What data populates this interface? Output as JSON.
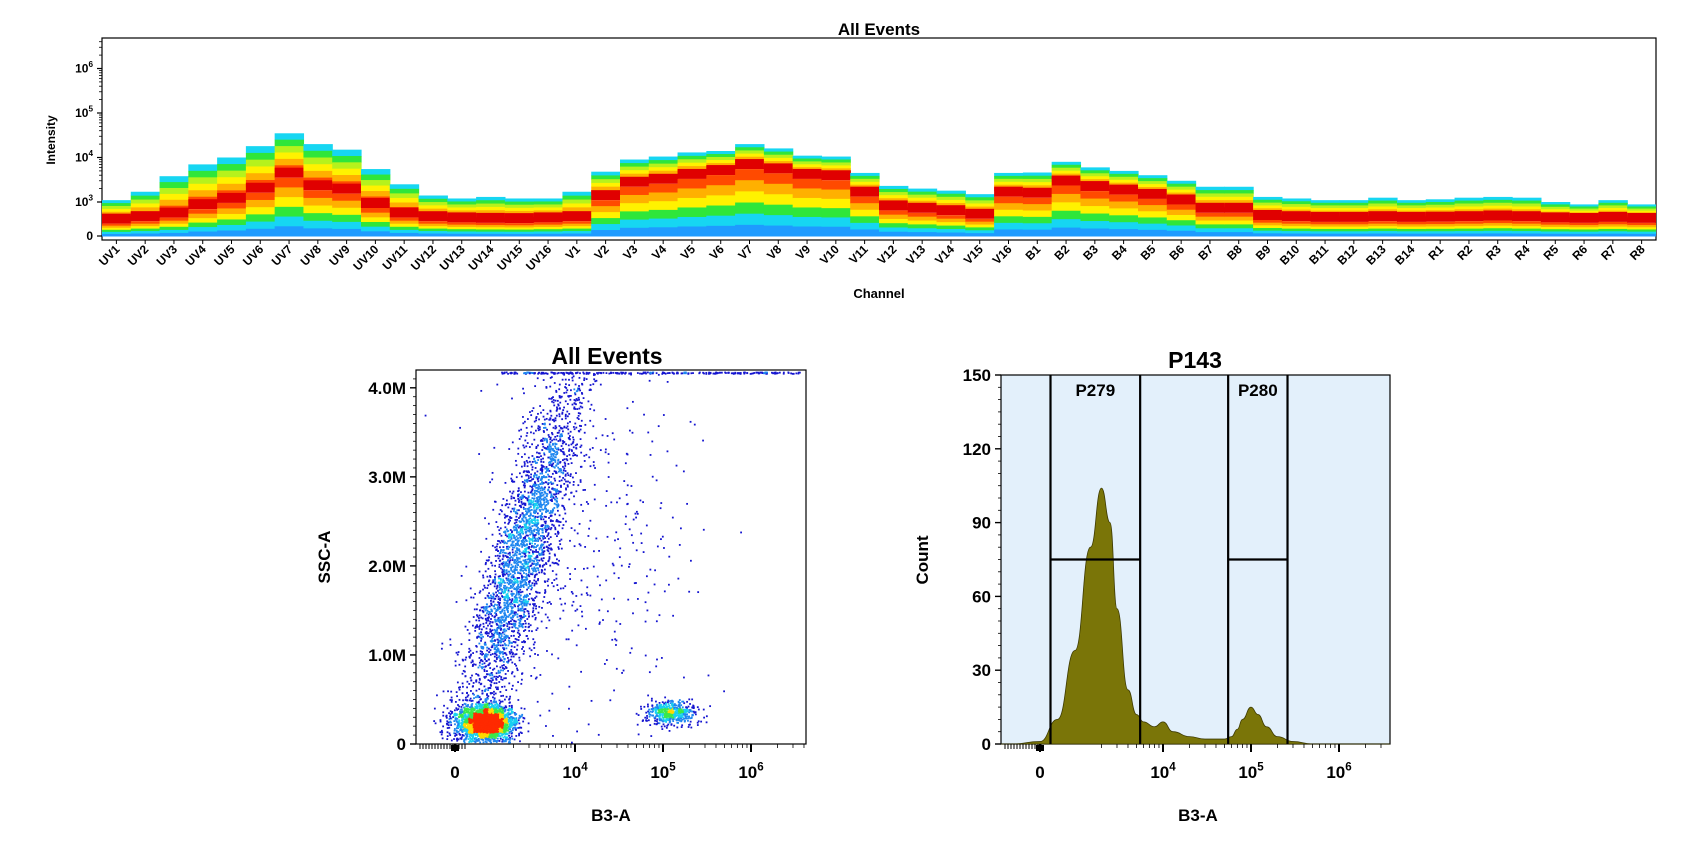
{
  "chart_data": [
    {
      "type": "heatmap",
      "title": "All Events",
      "xlabel": "Channel",
      "ylabel": "Intensity",
      "y_scale": "log",
      "y_ticks": [
        {
          "value": 0,
          "label": "0"
        },
        {
          "value": 1000,
          "label": "10",
          "exp": "3"
        },
        {
          "value": 10000,
          "label": "10",
          "exp": "4"
        },
        {
          "value": 100000,
          "label": "10",
          "exp": "5"
        },
        {
          "value": 1000000,
          "label": "10",
          "exp": "6"
        }
      ],
      "colormap": [
        "#0a22c8",
        "#1e9bff",
        "#16d6f2",
        "#2fe63a",
        "#b6f21c",
        "#fff200",
        "#ffb000",
        "#ff4a00",
        "#e00000"
      ],
      "categories": [
        "UV1",
        "UV2",
        "UV3",
        "UV4",
        "UV5",
        "UV6",
        "UV7",
        "UV8",
        "UV9",
        "UV10",
        "UV11",
        "UV12",
        "UV13",
        "UV14",
        "UV15",
        "UV16",
        "V1",
        "V2",
        "V3",
        "V4",
        "V5",
        "V6",
        "V7",
        "V8",
        "V9",
        "V10",
        "V11",
        "V12",
        "V13",
        "V14",
        "V15",
        "V16",
        "B1",
        "B2",
        "B3",
        "B4",
        "B5",
        "B6",
        "B7",
        "B8",
        "B9",
        "B10",
        "B11",
        "B12",
        "B13",
        "B14",
        "R1",
        "R2",
        "R3",
        "R4",
        "R5",
        "R6",
        "R7",
        "R8"
      ],
      "max_intensity": [
        1100,
        1700,
        3800,
        7000,
        10000,
        18000,
        35000,
        20000,
        15000,
        5500,
        2500,
        1400,
        1200,
        1300,
        1200,
        1200,
        1700,
        4800,
        9000,
        10500,
        13000,
        14000,
        20000,
        16000,
        11000,
        10500,
        4500,
        2300,
        2000,
        1800,
        1500,
        4500,
        4600,
        8000,
        6000,
        5000,
        4000,
        3000,
        2200,
        2200,
        1300,
        1200,
        1100,
        1100,
        1250,
        1100,
        1150,
        1250,
        1300,
        1250,
        1000,
        900,
        1100,
        900
      ],
      "peak_intensity": [
        350,
        450,
        600,
        950,
        1300,
        2200,
        4800,
        2500,
        2100,
        1000,
        600,
        450,
        400,
        380,
        370,
        400,
        450,
        1500,
        3000,
        3500,
        4500,
        5500,
        7500,
        6000,
        4500,
        4200,
        1800,
        900,
        800,
        700,
        550,
        1800,
        1700,
        3200,
        2400,
        2000,
        1600,
        1200,
        800,
        800,
        500,
        450,
        420,
        420,
        450,
        420,
        430,
        450,
        480,
        450,
        400,
        380,
        420,
        380
      ]
    },
    {
      "type": "scatter",
      "title": "All Events",
      "xlabel": "B3-A",
      "ylabel": "SSC-A",
      "x_scale": "biexponential",
      "x_ticks": [
        {
          "value": 0,
          "label": "0"
        },
        {
          "value": 10000,
          "label": "10",
          "exp": "4"
        },
        {
          "value": 100000,
          "label": "10",
          "exp": "5"
        },
        {
          "value": 1000000,
          "label": "10",
          "exp": "6"
        }
      ],
      "y_ticks": [
        "0",
        "1.0M",
        "2.0M",
        "3.0M",
        "4.0M"
      ],
      "ylim": [
        0,
        4200000
      ],
      "populations": [
        {
          "name": "",
          "x_center": 500,
          "y_center": 250000,
          "note_density": "highest"
        },
        {
          "name": "",
          "x_center": 4000,
          "y_center": 2000000,
          "note_density": "medium"
        },
        {
          "name": "",
          "x_center": 120000,
          "y_center": 350000,
          "note_density": "low"
        }
      ]
    },
    {
      "type": "area",
      "title": "P143",
      "xlabel": "B3-A",
      "ylabel": "Count",
      "x_scale": "biexponential",
      "x_ticks": [
        {
          "value": 0,
          "label": "0"
        },
        {
          "value": 10000,
          "label": "10",
          "exp": "4"
        },
        {
          "value": 100000,
          "label": "10",
          "exp": "5"
        },
        {
          "value": 1000000,
          "label": "10",
          "exp": "6"
        }
      ],
      "y_ticks": [
        "0",
        "30",
        "60",
        "90",
        "120",
        "150"
      ],
      "ylim": [
        0,
        150
      ],
      "fill_color": "#7a7508",
      "background_color": "#e3f0fb",
      "x": [
        -800,
        0,
        500,
        1000,
        1500,
        2000,
        2500,
        3000,
        4000,
        5000,
        6000,
        8000,
        10000,
        13000,
        20000,
        30000,
        50000,
        60000,
        70000,
        80000,
        100000,
        120000,
        150000,
        200000,
        300000,
        500000,
        1000000,
        3000000
      ],
      "y": [
        0,
        1,
        10,
        38,
        80,
        104,
        90,
        55,
        22,
        12,
        9,
        7,
        9,
        5,
        3,
        2,
        2,
        3,
        6,
        10,
        15,
        12,
        7,
        3,
        1,
        0,
        0,
        0
      ],
      "gates": [
        {
          "name": "P279",
          "x_min": 300,
          "x_max": 5500,
          "y_level": 75
        },
        {
          "name": "P280",
          "x_min": 55000,
          "x_max": 260000,
          "y_level": 75
        }
      ]
    }
  ]
}
